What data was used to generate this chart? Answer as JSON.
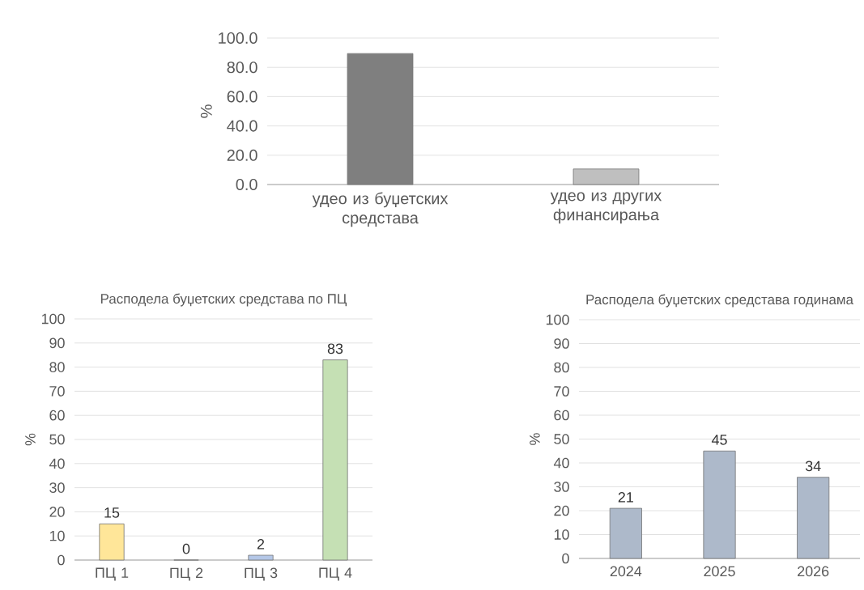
{
  "chart_data": [
    {
      "type": "bar",
      "ylabel": "%",
      "categories": [
        "удео из буџетских средстава",
        "удео из других финансирања"
      ],
      "values": [
        89.4,
        10.6
      ],
      "colors": [
        "#7f7f7f",
        "#bfbfbf"
      ],
      "ylim": [
        0,
        100
      ],
      "yticks": [
        {
          "value": 0,
          "label": "0.0"
        },
        {
          "value": 20,
          "label": "20.0"
        },
        {
          "value": 40,
          "label": "40.0"
        },
        {
          "value": 60,
          "label": "60.0"
        },
        {
          "value": 80,
          "label": "80.0"
        },
        {
          "value": 100,
          "label": "100.0"
        }
      ],
      "grid": "y"
    },
    {
      "type": "bar",
      "title": "Расподела буџетских средстава по ПЦ",
      "ylabel": "%",
      "categories": [
        "ПЦ 1",
        "ПЦ 2",
        "ПЦ 3",
        "ПЦ 4"
      ],
      "values": [
        15,
        0,
        2,
        83
      ],
      "colors": [
        "#ffe699",
        "#f4b183",
        "#b4c7e7",
        "#c5e0b4"
      ],
      "ylim": [
        0,
        100
      ],
      "yticks": [
        0,
        10,
        20,
        30,
        40,
        50,
        60,
        70,
        80,
        90,
        100
      ],
      "grid": "y",
      "data_labels": true
    },
    {
      "type": "bar",
      "title": "Расподела буџетских средстава годинама",
      "ylabel": "%",
      "categories": [
        "2024",
        "2025",
        "2026"
      ],
      "values": [
        21,
        45,
        34
      ],
      "colors": [
        "#adb9ca",
        "#adb9ca",
        "#adb9ca"
      ],
      "ylim": [
        0,
        100
      ],
      "yticks": [
        0,
        10,
        20,
        30,
        40,
        50,
        60,
        70,
        80,
        90,
        100
      ],
      "grid": "y",
      "data_labels": true
    }
  ]
}
